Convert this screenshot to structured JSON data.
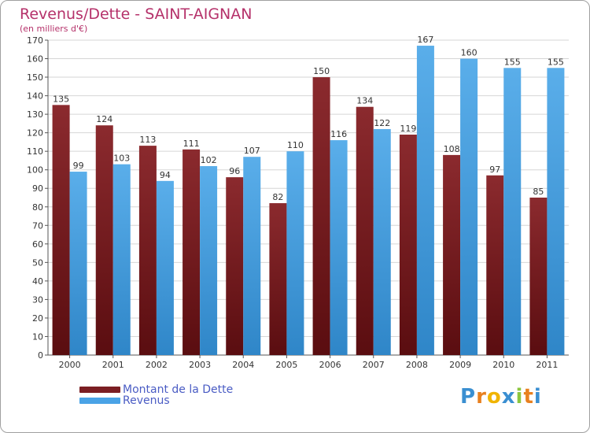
{
  "title": "Revenus/Dette - SAINT-AIGNAN",
  "subtitle": "(en milliers d'€)",
  "logo": {
    "text": "Proxiti",
    "letters": [
      "P",
      "r",
      "o",
      "x",
      "i",
      "t",
      "i"
    ],
    "colors": [
      "#3a8fd1",
      "#e8801f",
      "#f0b400",
      "#3a8fd1",
      "#8cc63f",
      "#e8801f",
      "#3a8fd1"
    ]
  },
  "colors": {
    "dette": "#7b1e23",
    "revenus": "#4aa3e6",
    "title": "#b5316a",
    "legend_text": "#4a5cc4"
  },
  "chart_data": {
    "type": "bar",
    "title": "Revenus/Dette - SAINT-AIGNAN",
    "ylabel": "(en milliers d'€)",
    "categories": [
      "2000",
      "2001",
      "2002",
      "2003",
      "2004",
      "2005",
      "2006",
      "2007",
      "2008",
      "2009",
      "2010",
      "2011"
    ],
    "ylim": [
      0,
      170
    ],
    "yticks": [
      0,
      10,
      20,
      30,
      40,
      50,
      60,
      70,
      80,
      90,
      100,
      110,
      120,
      130,
      140,
      150,
      160,
      170
    ],
    "grid": true,
    "legend_position": "bottom-left",
    "series": [
      {
        "name": "Montant de la Dette",
        "values": [
          135,
          124,
          113,
          111,
          96,
          82,
          150,
          134,
          119,
          108,
          97,
          85
        ]
      },
      {
        "name": "Revenus",
        "values": [
          99,
          103,
          94,
          102,
          107,
          110,
          116,
          122,
          167,
          160,
          155,
          155
        ]
      }
    ]
  }
}
